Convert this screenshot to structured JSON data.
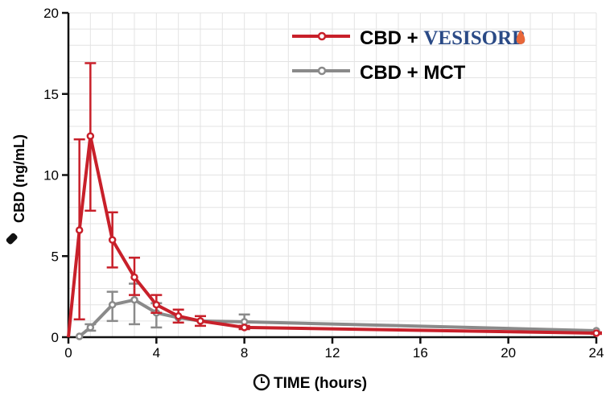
{
  "chart_data": {
    "type": "line",
    "xlabel": "TIME (hours)",
    "ylabel": "CBD (ng/mL)",
    "xlim": [
      0,
      24
    ],
    "ylim": [
      0,
      20
    ],
    "xticks": [
      0,
      4,
      8,
      12,
      16,
      20,
      24
    ],
    "yticks": [
      0,
      5,
      10,
      15,
      20
    ],
    "grid": true,
    "legend_position": "top-right",
    "series": [
      {
        "name": "CBD + VESISORB®",
        "brand": "VESISORB",
        "color": "#c8202a",
        "x": [
          0,
          0.5,
          1,
          2,
          3,
          4,
          5,
          6,
          8,
          24
        ],
        "y": [
          0,
          6.6,
          12.4,
          6.0,
          3.7,
          2.0,
          1.3,
          1.0,
          0.6,
          0.25
        ],
        "err_upper": [
          null,
          12.2,
          16.9,
          7.7,
          4.9,
          2.6,
          1.7,
          1.3,
          0.7,
          0.3
        ],
        "err_lower": [
          null,
          1.1,
          7.8,
          4.3,
          2.6,
          1.5,
          0.9,
          0.7,
          0.5,
          0.2
        ]
      },
      {
        "name": "CBD + MCT",
        "color": "#8a8a8a",
        "x": [
          0.5,
          1,
          2,
          3,
          4,
          5,
          6,
          8,
          24
        ],
        "y": [
          0.05,
          0.6,
          2.0,
          2.3,
          1.5,
          1.2,
          1.0,
          0.95,
          0.4
        ],
        "err_upper": [
          null,
          0.8,
          2.8,
          3.3,
          2.1,
          null,
          null,
          1.4,
          null
        ],
        "err_lower": [
          null,
          0.4,
          1.0,
          0.8,
          0.6,
          null,
          null,
          0.5,
          null
        ]
      }
    ]
  },
  "icons": {
    "ylabel": "dropper-icon",
    "xlabel": "clock-icon"
  }
}
